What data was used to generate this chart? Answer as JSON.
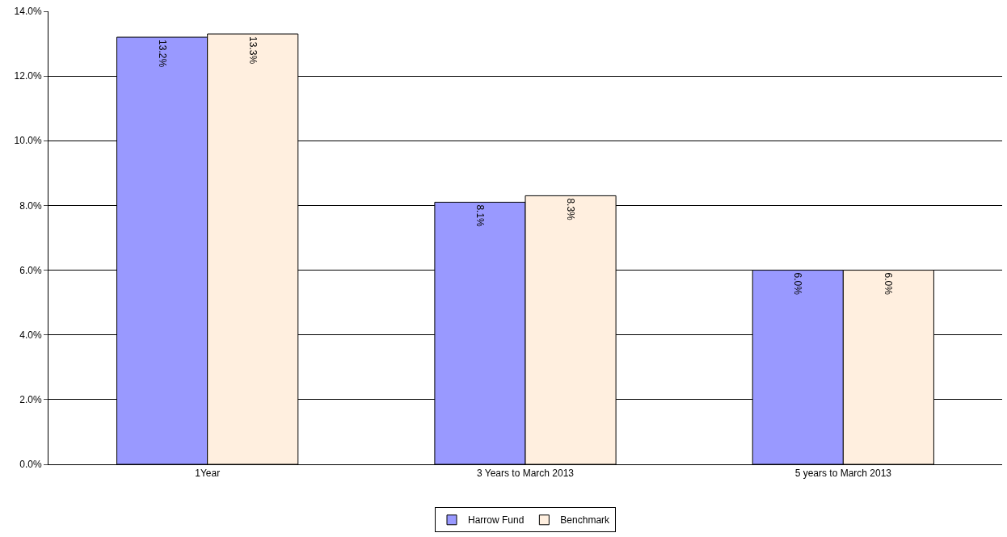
{
  "chart_data": {
    "type": "bar",
    "categories": [
      "1Year",
      "3 Years to March 2013",
      "5 years to March 2013"
    ],
    "series": [
      {
        "name": "Harrow Fund",
        "color": "#9999ff",
        "values": [
          13.2,
          8.1,
          6.0
        ],
        "value_labels": [
          "13.2%",
          "8.1%",
          "6.0%"
        ]
      },
      {
        "name": "Benchmark",
        "color": "#ffefdf",
        "values": [
          13.3,
          8.3,
          6.0
        ],
        "value_labels": [
          "13.3%",
          "8.3%",
          "6.0%"
        ]
      }
    ],
    "ylim": [
      0,
      14
    ],
    "yticks": [
      {
        "value": 0,
        "label": "0.0%"
      },
      {
        "value": 2,
        "label": "2.0%"
      },
      {
        "value": 4,
        "label": "4.0%"
      },
      {
        "value": 6,
        "label": "6.0%"
      },
      {
        "value": 8,
        "label": "8.0%"
      },
      {
        "value": 10,
        "label": "10.0%"
      },
      {
        "value": 12,
        "label": "12.0%"
      },
      {
        "value": 14,
        "label": "14.0%"
      }
    ],
    "grid": "y",
    "legend": "bottom"
  }
}
